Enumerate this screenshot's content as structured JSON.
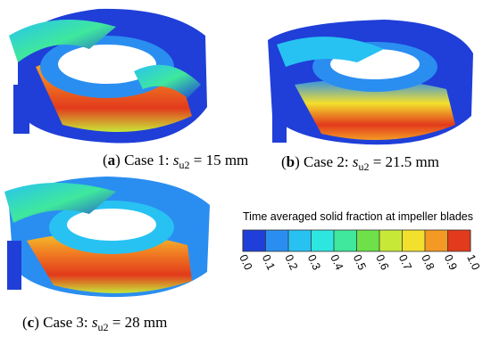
{
  "panels": [
    {
      "open": "(",
      "label": "a",
      "text": ") Case 1: ",
      "symbol": "s",
      "subscript": "u2",
      "value": " = 15 mm"
    },
    {
      "open": "(",
      "label": "b",
      "text": ") Case 2: ",
      "symbol": "s",
      "subscript": "u2",
      "value": " = 21.5 mm"
    },
    {
      "open": "(",
      "label": "c",
      "text": ") Case 3: ",
      "symbol": "s",
      "subscript": "u2",
      "value": " = 28 mm"
    }
  ],
  "colorbar": {
    "title": "Time averaged solid fraction at impeller blades",
    "colors": [
      "#1f3fd8",
      "#2a8ef0",
      "#27c2f2",
      "#2ee6e0",
      "#3fe89c",
      "#6de04a",
      "#c8e838",
      "#f3e02c",
      "#f39a24",
      "#e23a1c"
    ],
    "ticks": [
      {
        "value": 0,
        "label": "0.0"
      },
      {
        "value": 0.1,
        "label": "0.1"
      },
      {
        "value": 0.2,
        "label": "0.2"
      },
      {
        "value": 0.3,
        "label": "0.3"
      },
      {
        "value": 0.4,
        "label": "0.4"
      },
      {
        "value": 0.5,
        "label": "0.5"
      },
      {
        "value": 0.6,
        "label": "0.6"
      },
      {
        "value": 0.7,
        "label": "0.7"
      },
      {
        "value": 0.8,
        "label": "0.8"
      },
      {
        "value": 0.9,
        "label": "0.9"
      },
      {
        "value": 1,
        "label": "1.0"
      }
    ]
  }
}
